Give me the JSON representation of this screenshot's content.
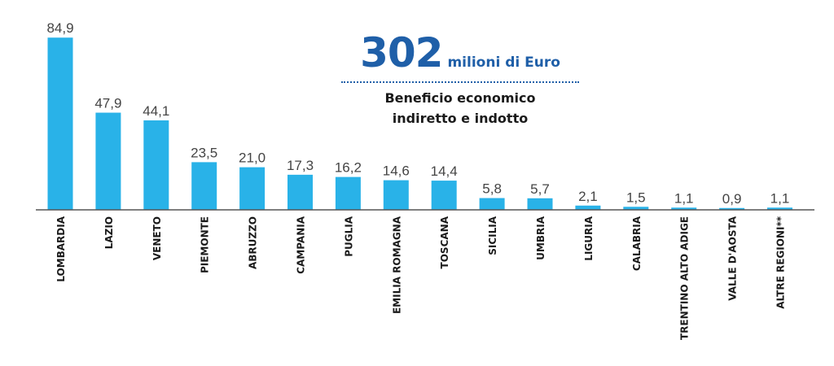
{
  "callout": {
    "amount": "302",
    "unit": "milioni di Euro",
    "line1": "Beneficio economico",
    "line2": "indiretto e indotto"
  },
  "colors": {
    "bar": "#29b2e8",
    "axis": "#555555",
    "value_label": "#444444",
    "category_label": "#1a1a1a",
    "accent": "#1f5fa8"
  },
  "chart_data": {
    "type": "bar",
    "categories": [
      "LOMBARDIA",
      "LAZIO",
      "VENETO",
      "PIEMONTE",
      "ABRUZZO",
      "CAMPANIA",
      "PUGLIA",
      "EMILIA ROMAGNA",
      "TOSCANA",
      "SICILIA",
      "UMBRIA",
      "LIGURIA",
      "CALABRIA",
      "TRENTINO ALTO ADIGE",
      "VALLE D'AOSTA",
      "ALTRE REGIONI**"
    ],
    "values": [
      84.9,
      47.9,
      44.1,
      23.5,
      21.0,
      17.3,
      16.2,
      14.6,
      14.4,
      5.8,
      5.7,
      2.1,
      1.5,
      1.1,
      0.9,
      1.1
    ],
    "value_labels": [
      "84,9",
      "47,9",
      "44,1",
      "23,5",
      "21,0",
      "17,3",
      "16,2",
      "14,6",
      "14,4",
      "5,8",
      "5,7",
      "2,1",
      "1,5",
      "1,1",
      "0,9",
      "1,1"
    ],
    "title": "",
    "xlabel": "",
    "ylabel": "",
    "ylim": [
      0,
      85
    ],
    "grid": false,
    "legend": "none"
  }
}
